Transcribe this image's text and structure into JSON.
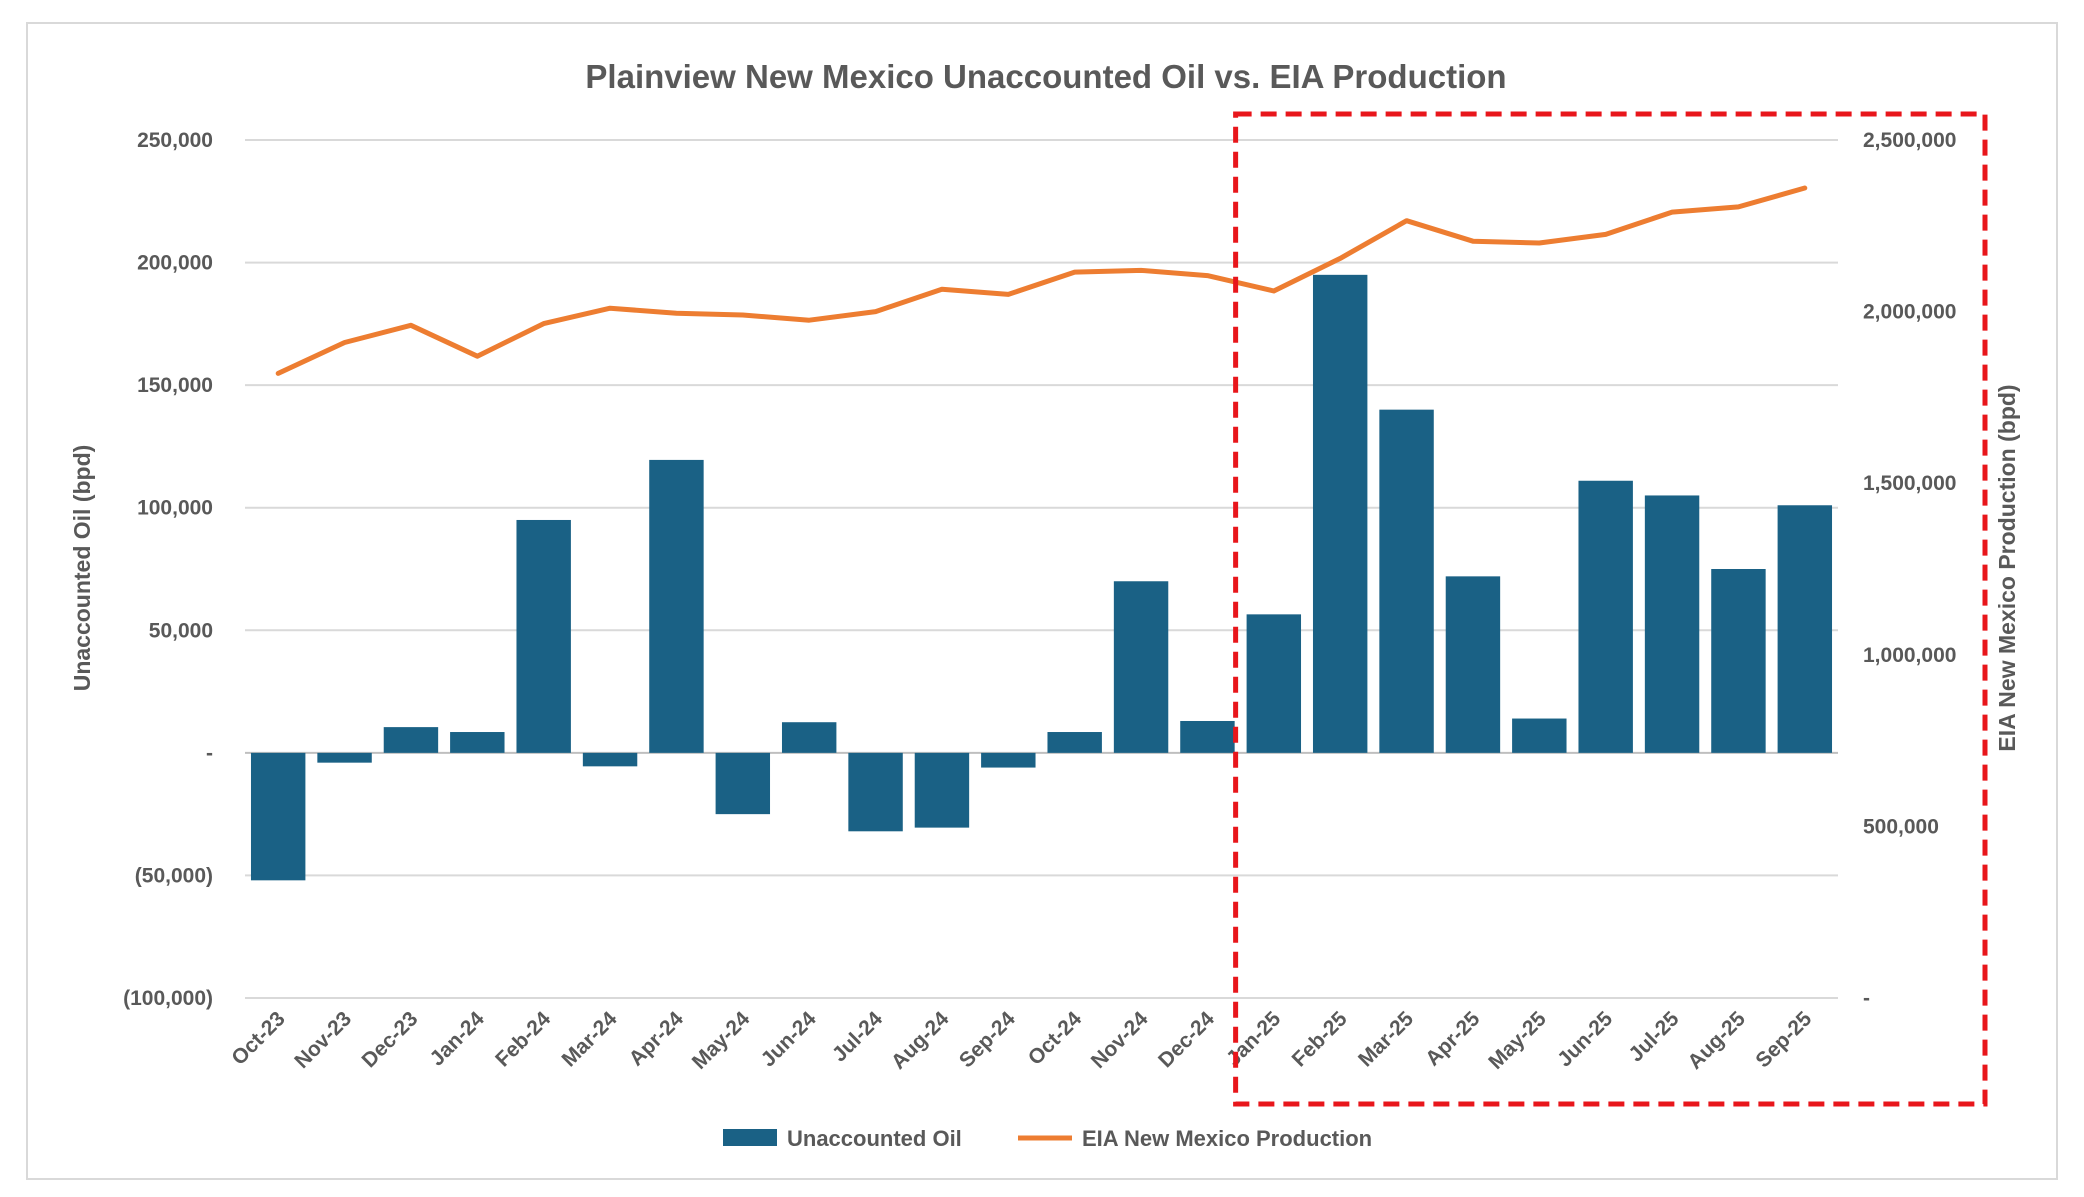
{
  "colors": {
    "bar": "#1a6185",
    "line": "#ed7d31",
    "grid": "#d9d9d9",
    "text": "#595959",
    "highlight": "#e8161b"
  },
  "chart_data": {
    "type": "bar",
    "title": "Plainview New Mexico Unaccounted Oil vs. EIA Production",
    "categories": [
      "Oct-23",
      "Nov-23",
      "Dec-23",
      "Jan-24",
      "Feb-24",
      "Mar-24",
      "Apr-24",
      "May-24",
      "Jun-24",
      "Jul-24",
      "Aug-24",
      "Sep-24",
      "Oct-24",
      "Nov-24",
      "Dec-24",
      "Jan-25",
      "Feb-25",
      "Mar-25",
      "Apr-25",
      "May-25",
      "Jun-25",
      "Jul-25",
      "Aug-25",
      "Sep-25"
    ],
    "series": [
      {
        "name": "Unaccounted Oil",
        "type": "bar",
        "axis": "left",
        "values": [
          -52000,
          -4000,
          10500,
          8500,
          95000,
          -5500,
          119500,
          -25000,
          12500,
          -32000,
          -30500,
          -6000,
          8500,
          70000,
          13000,
          56500,
          195000,
          140000,
          72000,
          14000,
          111000,
          105000,
          75000,
          101000
        ]
      },
      {
        "name": "EIA New Mexico Production",
        "type": "line",
        "axis": "right",
        "values": [
          1820000,
          1910000,
          1960000,
          1870000,
          1965000,
          2010000,
          1995000,
          1990000,
          1975000,
          2000000,
          2065000,
          2050000,
          2115000,
          2120000,
          2105000,
          2060000,
          2155000,
          2265000,
          2205000,
          2200000,
          2225000,
          2290000,
          2305000,
          2360000
        ]
      }
    ],
    "ylabel": "Unaccounted Oil (bpd)",
    "y2label": "EIA New Mexico Production (bpd)",
    "ylim": [
      -100000,
      250000
    ],
    "y2lim": [
      0,
      2500000
    ],
    "yticks": [
      "250,000",
      "200,000",
      "150,000",
      "100,000",
      "50,000",
      "-",
      "(50,000)",
      "(100,000)"
    ],
    "y2ticks": [
      "2,500,000",
      "2,000,000",
      "1,500,000",
      "1,000,000",
      "500,000",
      "-"
    ],
    "legend_position": "bottom",
    "grid": true,
    "highlight_box": {
      "from_category": "Jan-25",
      "to_category": "Sep-25",
      "style": "dashed"
    }
  }
}
